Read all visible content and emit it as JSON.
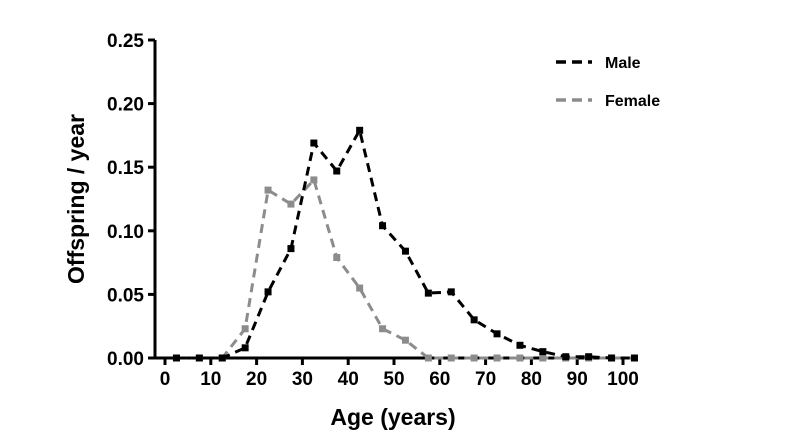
{
  "chart_data": {
    "type": "line",
    "title": "",
    "xlabel": "Age (years)",
    "ylabel": "Offspring / year",
    "xlim": [
      0,
      100
    ],
    "ylim": [
      0,
      0.25
    ],
    "xticks": [
      "0",
      "10",
      "20",
      "30",
      "40",
      "50",
      "60",
      "70",
      "80",
      "90",
      "100"
    ],
    "yticks": [
      "0.00",
      "0.05",
      "0.10",
      "0.15",
      "0.20",
      "0.25"
    ],
    "grid": false,
    "legend": "top-right",
    "series": [
      {
        "name": "Male",
        "color": "#000000",
        "marker": "square",
        "line_style": "dashed",
        "x": [
          2.5,
          7.5,
          12.5,
          17.5,
          22.5,
          27.5,
          32.5,
          37.5,
          42.5,
          47.5,
          52.5,
          57.5,
          62.5,
          67.5,
          72.5,
          77.5,
          82.5,
          87.5,
          92.5,
          97.5,
          102.5
        ],
        "y": [
          0.0,
          0.0,
          0.0,
          0.008,
          0.052,
          0.086,
          0.169,
          0.147,
          0.179,
          0.104,
          0.084,
          0.051,
          0.052,
          0.03,
          0.019,
          0.01,
          0.005,
          0.001,
          0.001,
          0.0,
          0.0
        ]
      },
      {
        "name": "Female",
        "color": "#8c8c8c",
        "marker": "square",
        "line_style": "dashed",
        "x": [
          2.5,
          7.5,
          12.5,
          17.5,
          22.5,
          27.5,
          32.5,
          37.5,
          42.5,
          47.5,
          52.5,
          57.5,
          62.5,
          67.5,
          72.5,
          77.5,
          82.5,
          87.5,
          92.5,
          97.5,
          102.5
        ],
        "y": [
          0.0,
          0.0,
          0.0,
          0.023,
          0.132,
          0.121,
          0.14,
          0.079,
          0.055,
          0.023,
          0.014,
          0.0,
          0.0,
          0.0,
          0.0,
          0.0,
          0.0,
          0.0,
          0.0,
          0.0,
          0.0
        ]
      }
    ]
  }
}
